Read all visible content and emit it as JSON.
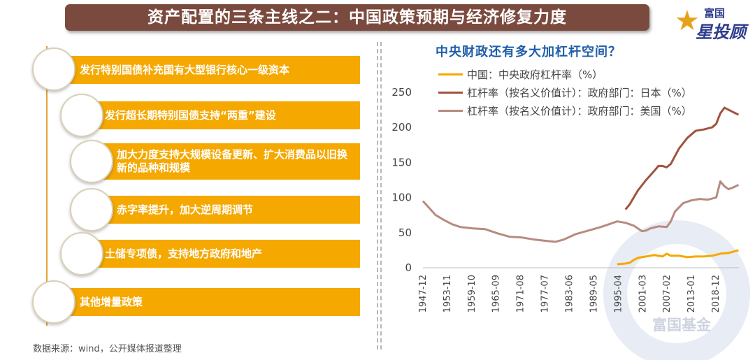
{
  "header": {
    "title": "资产配置的三条主线之二：中国政策预期与经济修复力度"
  },
  "logo": {
    "top": "富国",
    "main": "星投顾"
  },
  "items": [
    {
      "label": "发行特别国债补充国有大型银行核心一级资本"
    },
    {
      "label": "发行超长期特别国债支持“两重”建设"
    },
    {
      "label": "加大力度支持大规模设备更新、扩大消费品以旧换新的品种和规模"
    },
    {
      "label": "赤字率提升，加大逆周期调节"
    },
    {
      "label": "土储专项债，支持地方政府和地产"
    },
    {
      "label": "其他增量政策"
    }
  ],
  "source": "数据来源：wind，公开媒体报道整理",
  "watermark": "富国基金",
  "chart_data": {
    "type": "line",
    "title": "中央财政还有多大加杠杆空间？",
    "ylim": [
      0,
      250
    ],
    "yticks": [
      0,
      50,
      100,
      150,
      200,
      250
    ],
    "xticks": [
      "1947-12",
      "1953-11",
      "1959-10",
      "1965-09",
      "1971-08",
      "1977-07",
      "1983-06",
      "1989-05",
      "1995-04",
      "2001-03",
      "2007-02",
      "2013-01",
      "2018-12"
    ],
    "xrange": [
      1947.92,
      2024.5
    ],
    "legend_position": "top-left",
    "series": [
      {
        "name": "中国：中央政府杠杆率（%）",
        "color": "#f5a800",
        "points": [
          [
            1995,
            5
          ],
          [
            1997,
            6
          ],
          [
            1998,
            7
          ],
          [
            1999,
            11
          ],
          [
            2000,
            14
          ],
          [
            2002,
            16
          ],
          [
            2004,
            18
          ],
          [
            2006,
            16
          ],
          [
            2007,
            20
          ],
          [
            2008,
            17
          ],
          [
            2010,
            17
          ],
          [
            2012,
            15
          ],
          [
            2014,
            16
          ],
          [
            2016,
            16
          ],
          [
            2018,
            17
          ],
          [
            2020,
            20
          ],
          [
            2022,
            21
          ],
          [
            2024.4,
            25
          ]
        ]
      },
      {
        "name": "杠杆率（按名义价值计）：政府部门：日本（%）",
        "color": "#a0533e",
        "points": [
          [
            1997,
            83
          ],
          [
            1998,
            90
          ],
          [
            2000,
            110
          ],
          [
            2002,
            125
          ],
          [
            2004,
            138
          ],
          [
            2005,
            145
          ],
          [
            2006,
            145
          ],
          [
            2007,
            143
          ],
          [
            2008,
            148
          ],
          [
            2010,
            170
          ],
          [
            2012,
            185
          ],
          [
            2014,
            195
          ],
          [
            2016,
            197
          ],
          [
            2018,
            200
          ],
          [
            2019,
            205
          ],
          [
            2020,
            220
          ],
          [
            2021,
            228
          ],
          [
            2022,
            225
          ],
          [
            2023,
            222
          ],
          [
            2024.4,
            218
          ]
        ]
      },
      {
        "name": "杠杆率（按名义价值计）：政府部门：美国（%）",
        "color": "#b78b80",
        "points": [
          [
            1947.9,
            95
          ],
          [
            1949,
            88
          ],
          [
            1951,
            75
          ],
          [
            1953,
            68
          ],
          [
            1955,
            62
          ],
          [
            1957,
            58
          ],
          [
            1960,
            56
          ],
          [
            1963,
            55
          ],
          [
            1966,
            49
          ],
          [
            1969,
            44
          ],
          [
            1972,
            43
          ],
          [
            1975,
            40
          ],
          [
            1978,
            38
          ],
          [
            1980,
            37
          ],
          [
            1982,
            40
          ],
          [
            1985,
            48
          ],
          [
            1988,
            53
          ],
          [
            1991,
            58
          ],
          [
            1993,
            62
          ],
          [
            1995,
            66
          ],
          [
            1997,
            64
          ],
          [
            1999,
            60
          ],
          [
            2001,
            52
          ],
          [
            2002,
            53
          ],
          [
            2003,
            56
          ],
          [
            2005,
            59
          ],
          [
            2007,
            58
          ],
          [
            2008,
            66
          ],
          [
            2009,
            80
          ],
          [
            2011,
            92
          ],
          [
            2013,
            96
          ],
          [
            2015,
            98
          ],
          [
            2017,
            97
          ],
          [
            2019,
            100
          ],
          [
            2020,
            123
          ],
          [
            2021,
            116
          ],
          [
            2022,
            112
          ],
          [
            2023,
            114
          ],
          [
            2024.4,
            118
          ]
        ]
      }
    ]
  }
}
